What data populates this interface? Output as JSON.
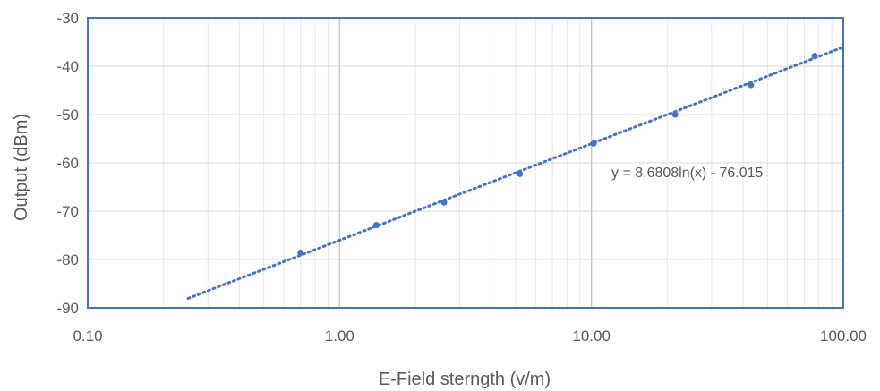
{
  "chart_data": {
    "type": "scatter",
    "title": "",
    "xlabel": "E-Field sterngth (v/m)",
    "ylabel": "Output (dBm)",
    "x_scale": "log",
    "xlim": [
      0.1,
      100
    ],
    "ylim": [
      -90,
      -30
    ],
    "x_ticks": [
      "0.10",
      "1.00",
      "10.00",
      "100.00"
    ],
    "y_ticks": [
      "-30",
      "-40",
      "-50",
      "-60",
      "-70",
      "-80",
      "-90"
    ],
    "grid": true,
    "legend": "none",
    "series": [
      {
        "x": [
          0.7,
          1.4,
          2.6,
          5.2,
          10.2,
          21.5,
          43,
          77
        ],
        "y": [
          -78.6,
          -72.9,
          -68.2,
          -62.3,
          -56.0,
          -50.0,
          -43.9,
          -37.9
        ],
        "color": "#4472c4"
      }
    ],
    "trendline": {
      "type": "logarithmic",
      "slope": 8.6808,
      "intercept": -76.015,
      "x_range": [
        0.25,
        100
      ],
      "color": "#4472c4",
      "style": "dotted",
      "equation": "y = 8.6808ln(x) - 76.015"
    }
  }
}
